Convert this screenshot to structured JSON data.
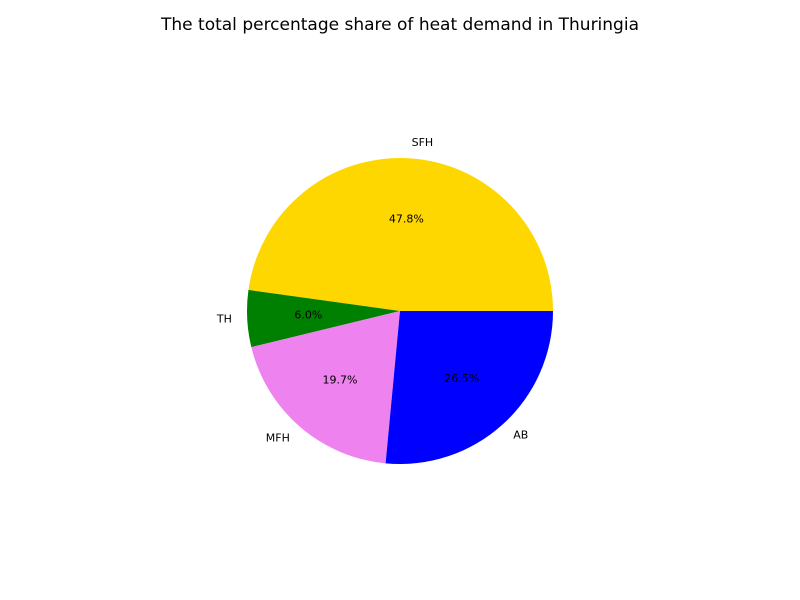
{
  "chart_data": {
    "type": "pie",
    "title": "The total percentage share of heat demand in Thuringia",
    "start_angle_deg": 0,
    "direction": "counterclockwise",
    "slices": [
      {
        "label": "SFH",
        "value": 47.8,
        "pct_label": "47.8%",
        "color": "#ffd700"
      },
      {
        "label": "TH",
        "value": 6.0,
        "pct_label": "6.0%",
        "color": "#008000"
      },
      {
        "label": "MFH",
        "value": 19.7,
        "pct_label": "19.7%",
        "color": "#ee82ee"
      },
      {
        "label": "AB",
        "value": 26.5,
        "pct_label": "26.5%",
        "color": "#0000ff"
      }
    ]
  }
}
